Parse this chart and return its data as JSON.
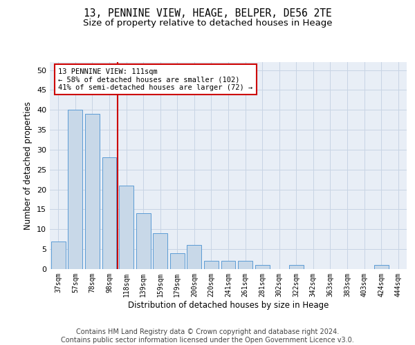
{
  "title": "13, PENNINE VIEW, HEAGE, BELPER, DE56 2TE",
  "subtitle": "Size of property relative to detached houses in Heage",
  "xlabel": "Distribution of detached houses by size in Heage",
  "ylabel": "Number of detached properties",
  "categories": [
    "37sqm",
    "57sqm",
    "78sqm",
    "98sqm",
    "118sqm",
    "139sqm",
    "159sqm",
    "179sqm",
    "200sqm",
    "220sqm",
    "241sqm",
    "261sqm",
    "281sqm",
    "302sqm",
    "322sqm",
    "342sqm",
    "363sqm",
    "383sqm",
    "403sqm",
    "424sqm",
    "444sqm"
  ],
  "values": [
    7,
    40,
    39,
    28,
    21,
    14,
    9,
    4,
    6,
    2,
    2,
    2,
    1,
    0,
    1,
    0,
    0,
    0,
    0,
    1,
    0
  ],
  "bar_color": "#c8d8e8",
  "bar_edge_color": "#5b9bd5",
  "grid_color": "#c8d4e4",
  "background_color": "#e8eef6",
  "vline_x_index": 3.5,
  "vline_color": "#cc0000",
  "annotation_text": "13 PENNINE VIEW: 111sqm\n← 58% of detached houses are smaller (102)\n41% of semi-detached houses are larger (72) →",
  "annotation_box_color": "#ffffff",
  "annotation_box_edge": "#cc0000",
  "ylim": [
    0,
    52
  ],
  "yticks": [
    0,
    5,
    10,
    15,
    20,
    25,
    30,
    35,
    40,
    45,
    50
  ],
  "footnote": "Contains HM Land Registry data © Crown copyright and database right 2024.\nContains public sector information licensed under the Open Government Licence v3.0.",
  "title_fontsize": 10.5,
  "subtitle_fontsize": 9.5,
  "xlabel_fontsize": 8.5,
  "ylabel_fontsize": 8.5,
  "footnote_fontsize": 7.0
}
